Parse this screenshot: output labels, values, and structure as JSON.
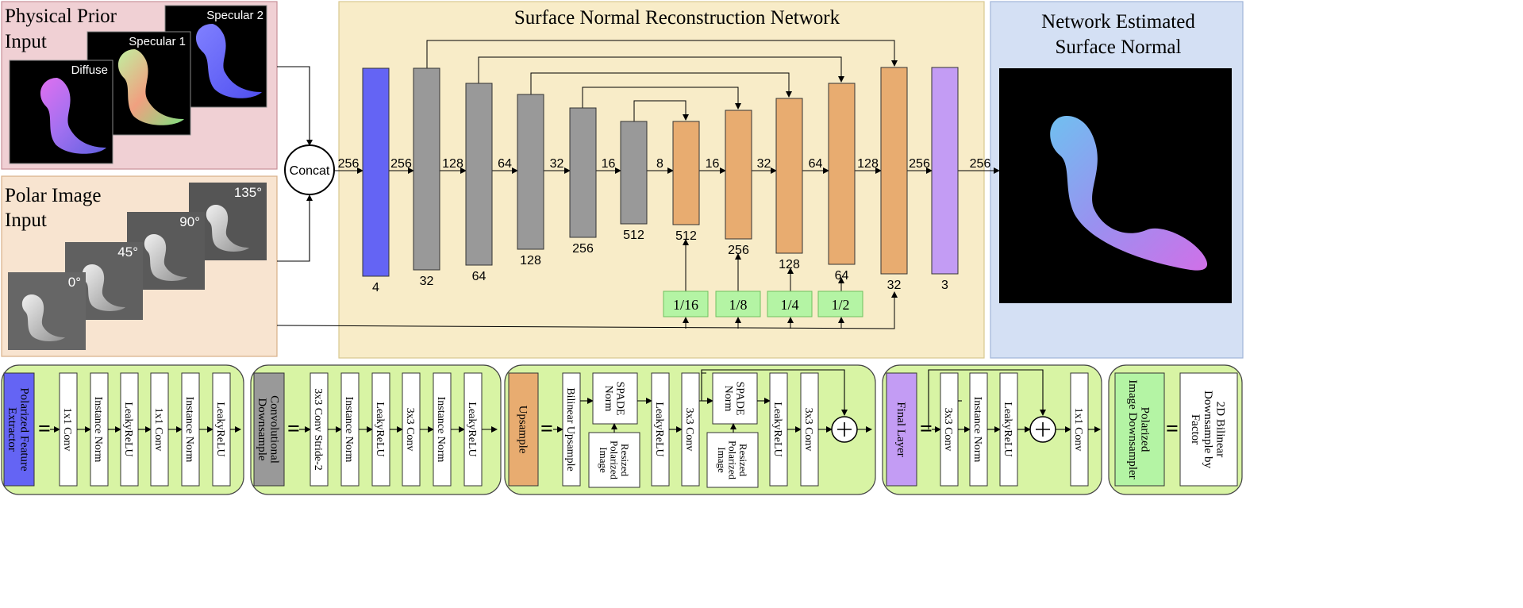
{
  "panels": {
    "physical_prior": {
      "title_line1": "Physical Prior",
      "title_line2": "Input",
      "images": [
        "Diffuse",
        "Specular 1",
        "Specular 2"
      ]
    },
    "polar_image": {
      "title_line1": "Polar Image",
      "title_line2": "Input",
      "images": [
        "0°",
        "45°",
        "90°",
        "135°"
      ]
    },
    "network": {
      "title": "Surface Normal Reconstruction Network"
    },
    "output": {
      "title_line1": "Network Estimated",
      "title_line2": "Surface Normal"
    }
  },
  "concat_label": "Concat",
  "resolutions": [
    "256",
    "256",
    "128",
    "64",
    "32",
    "16",
    "8",
    "16",
    "32",
    "64",
    "128",
    "256",
    "256"
  ],
  "blocks": [
    {
      "type": "extractor",
      "channels": "4"
    },
    {
      "type": "down",
      "channels": "32"
    },
    {
      "type": "down",
      "channels": "64"
    },
    {
      "type": "down",
      "channels": "128"
    },
    {
      "type": "down",
      "channels": "256"
    },
    {
      "type": "down",
      "channels": "512"
    },
    {
      "type": "up",
      "channels": "512"
    },
    {
      "type": "up",
      "channels": "256"
    },
    {
      "type": "up",
      "channels": "128"
    },
    {
      "type": "up",
      "channels": "64"
    },
    {
      "type": "up",
      "channels": "32"
    },
    {
      "type": "final",
      "channels": "3"
    }
  ],
  "downsample_factors": [
    "1/16",
    "1/8",
    "1/4",
    "1/2"
  ],
  "legend": {
    "extractor": {
      "label": "Polarized Feature Extractor",
      "layers": [
        "1x1 Conv",
        "Instance Norm",
        "LeakyReLU",
        "1x1 Conv",
        "Instance Norm",
        "LeakyReLU"
      ]
    },
    "downsample": {
      "label": "Convolutional Downsample",
      "layers": [
        "3x3 Conv Stride-2",
        "Instance Norm",
        "LeakyReLU",
        "3x3 Conv",
        "Instance Norm",
        "LeakyReLU"
      ]
    },
    "upsample": {
      "label": "Upsample",
      "layers": [
        "Bilinear Upsample",
        "SPADE Norm",
        "Resized Polarized Image",
        "LeakyReLU",
        "3x3 Conv",
        "SPADE Norm",
        "Resized Polarized Image",
        "LeakyReLU",
        "3x3 Conv"
      ]
    },
    "final": {
      "label": "Final Layer",
      "layers": [
        "3x3 Conv",
        "Instance Norm",
        "LeakyReLU",
        "1x1 Conv"
      ]
    },
    "polar_down": {
      "label": "Polarized Image Downsampler",
      "layers": [
        "2D Bilinear Downsample by Factor"
      ]
    }
  },
  "colors": {
    "extractor": "#6464f4",
    "down": "#999999",
    "up": "#e8ac70",
    "final": "#c39cf4",
    "factor": "#b4f4a4",
    "legend_bg": "#d8f4a4",
    "prior_bg": "#f0d0d4",
    "polar_bg": "#f8e4d0",
    "net_bg": "#f8ecc8",
    "out_bg": "#d4e0f4"
  }
}
